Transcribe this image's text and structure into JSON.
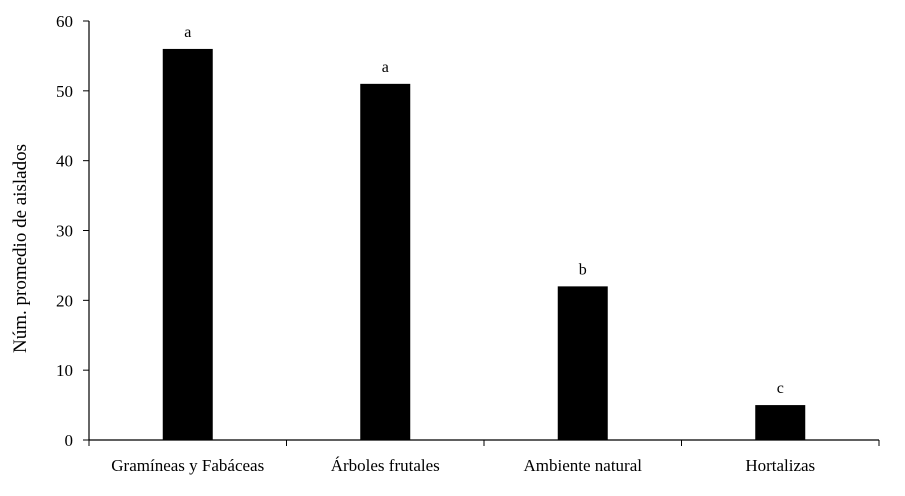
{
  "chart_data": {
    "type": "bar",
    "title": "",
    "xlabel": "",
    "ylabel": "Núm. promedio de aislados",
    "categories": [
      "Gramíneas y Fabáceas",
      "Árboles frutales",
      "Ambiente natural",
      "Hortalizas"
    ],
    "values": [
      56,
      51,
      22,
      5
    ],
    "data_labels": [
      "a",
      "a",
      "b",
      "c"
    ],
    "ylim": [
      0,
      60
    ],
    "yticks": [
      0,
      10,
      20,
      30,
      40,
      50,
      60
    ],
    "grid": false,
    "bar_color": "#000000"
  }
}
